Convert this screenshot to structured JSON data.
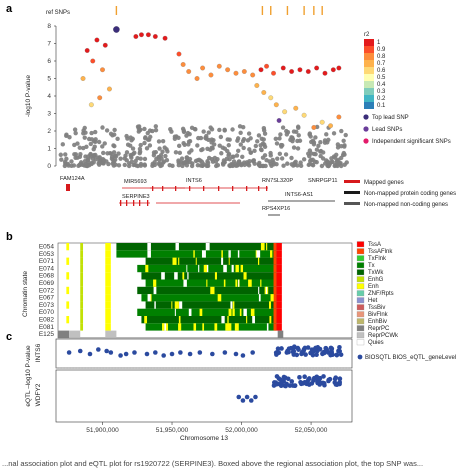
{
  "panel_labels": {
    "a": "a",
    "b": "b",
    "c": "c"
  },
  "caption": "...nal association plot and eQTL plot for rs1920722 (SERPINE3). Boxed above the regional association plot, the top SNP was...",
  "chart_data": [
    {
      "type": "scatter",
      "panel": "a",
      "ylabel": "-log10 P-value",
      "ylim": [
        0,
        8
      ],
      "yticks": [
        "0",
        "1",
        "2",
        "3",
        "4",
        "5",
        "6",
        "7",
        "8"
      ],
      "track_label": "ref SNPs",
      "ref_snps_x": [
        51910000,
        52015000,
        52021000,
        52033000,
        52045000,
        52052000,
        52058000
      ],
      "x_range": [
        51868000,
        52078000
      ],
      "legend_title": "r2",
      "r2_colors": [
        "#e31a1c",
        "#fc4e2a",
        "#fd8d3c",
        "#feb24c",
        "#fed976",
        "#ffffb2",
        "#c7e9b4",
        "#7fcdbb",
        "#41b6c4",
        "#2c7fb8"
      ],
      "r2_ticks": [
        "1",
        "0.9",
        "0.8",
        "0.7",
        "0.6",
        "0.5",
        "0.4",
        "0.3",
        "0.2",
        "0.1"
      ],
      "legend_items": [
        {
          "label": "Top lead SNP",
          "color": "#3b2d7a"
        },
        {
          "label": "Lead SNPs",
          "color": "#6a3d9a"
        },
        {
          "label": "Independent significant SNPs",
          "color": "#e31a6a"
        }
      ],
      "points": [
        {
          "x": 51910000,
          "y": 7.8,
          "c": "#3b2d7a",
          "r": 3.2
        },
        {
          "x": 51896000,
          "y": 7.2,
          "c": "#e31a1c"
        },
        {
          "x": 51902000,
          "y": 6.9,
          "c": "#e31a1c"
        },
        {
          "x": 51889000,
          "y": 6.6,
          "c": "#e31a1c"
        },
        {
          "x": 51893000,
          "y": 6.0,
          "c": "#fc4e2a"
        },
        {
          "x": 51900000,
          "y": 5.5,
          "c": "#fd8d3c"
        },
        {
          "x": 51886000,
          "y": 5.0,
          "c": "#feb24c"
        },
        {
          "x": 51905000,
          "y": 4.4,
          "c": "#feb24c"
        },
        {
          "x": 51898000,
          "y": 3.9,
          "c": "#fd8d3c"
        },
        {
          "x": 51892000,
          "y": 3.5,
          "c": "#fed976"
        },
        {
          "x": 51924000,
          "y": 7.4,
          "c": "#e31a1c"
        },
        {
          "x": 51928000,
          "y": 7.5,
          "c": "#e31a1c"
        },
        {
          "x": 51933000,
          "y": 7.5,
          "c": "#e31a1c"
        },
        {
          "x": 51938000,
          "y": 7.4,
          "c": "#e31a1c"
        },
        {
          "x": 51945000,
          "y": 7.3,
          "c": "#e31a1c"
        },
        {
          "x": 51955000,
          "y": 6.4,
          "c": "#fc4e2a"
        },
        {
          "x": 51958000,
          "y": 5.8,
          "c": "#fd8d3c"
        },
        {
          "x": 51962000,
          "y": 5.4,
          "c": "#fd8d3c"
        },
        {
          "x": 51968000,
          "y": 5.0,
          "c": "#fd8d3c"
        },
        {
          "x": 51972000,
          "y": 5.6,
          "c": "#fd8d3c"
        },
        {
          "x": 51978000,
          "y": 5.2,
          "c": "#fd8d3c"
        },
        {
          "x": 51984000,
          "y": 5.7,
          "c": "#fd8d3c"
        },
        {
          "x": 51990000,
          "y": 5.5,
          "c": "#fd8d3c"
        },
        {
          "x": 51996000,
          "y": 5.3,
          "c": "#fd8d3c"
        },
        {
          "x": 52002000,
          "y": 5.4,
          "c": "#fd8d3c"
        },
        {
          "x": 52008000,
          "y": 5.2,
          "c": "#fd8d3c"
        },
        {
          "x": 52014000,
          "y": 5.5,
          "c": "#e31a1c"
        },
        {
          "x": 52018000,
          "y": 5.7,
          "c": "#fc4e2a"
        },
        {
          "x": 52023000,
          "y": 5.3,
          "c": "#fc4e2a"
        },
        {
          "x": 52030000,
          "y": 5.6,
          "c": "#e31a1c"
        },
        {
          "x": 52036000,
          "y": 5.4,
          "c": "#e31a1c"
        },
        {
          "x": 52042000,
          "y": 5.5,
          "c": "#e31a1c"
        },
        {
          "x": 52048000,
          "y": 5.4,
          "c": "#e31a1c"
        },
        {
          "x": 52054000,
          "y": 5.6,
          "c": "#e31a1c"
        },
        {
          "x": 52060000,
          "y": 5.3,
          "c": "#e31a1c"
        },
        {
          "x": 52066000,
          "y": 5.5,
          "c": "#e31a1c"
        },
        {
          "x": 52070000,
          "y": 5.6,
          "c": "#e31a1c"
        },
        {
          "x": 52011000,
          "y": 4.6,
          "c": "#feb24c"
        },
        {
          "x": 52016000,
          "y": 4.2,
          "c": "#feb24c"
        },
        {
          "x": 52021000,
          "y": 3.9,
          "c": "#fed976"
        },
        {
          "x": 52025000,
          "y": 3.5,
          "c": "#feb24c"
        },
        {
          "x": 52031000,
          "y": 3.1,
          "c": "#fed976"
        },
        {
          "x": 52027000,
          "y": 2.6,
          "c": "#6a3d9a"
        },
        {
          "x": 52039000,
          "y": 3.3,
          "c": "#feb24c"
        },
        {
          "x": 52045000,
          "y": 2.9,
          "c": "#fed976"
        },
        {
          "x": 52052000,
          "y": 2.2,
          "c": "#fd8d3c"
        },
        {
          "x": 52058000,
          "y": 2.5,
          "c": "#fed976"
        },
        {
          "x": 52064000,
          "y": 2.3,
          "c": "#feb24c"
        },
        {
          "x": 52070000,
          "y": 2.8,
          "c": "#fd8d3c"
        }
      ],
      "background_points": {
        "count": 520,
        "color": "#7f7f7f",
        "ymax": 2.3
      },
      "genes": [
        {
          "label": "FAM124A",
          "mapped": true
        },
        {
          "label": "MIR5693",
          "mapped": true
        },
        {
          "label": "SERPINE3",
          "mapped": true
        },
        {
          "label": "INTS6",
          "mapped": true
        },
        {
          "label": "RN7SL320P",
          "mapped": false
        },
        {
          "label": "INTS6-AS1",
          "mapped": false
        },
        {
          "label": "SNRPGP11",
          "mapped": false
        },
        {
          "label": "RPS4XP16",
          "mapped": false
        }
      ],
      "gene_legend": [
        {
          "label": "Mapped genes",
          "color": "#d7191c"
        },
        {
          "label": "Non-mapped protein coding genes",
          "color": "#1a1a1a"
        },
        {
          "label": "Non-mapped non-coding genes",
          "color": "#555555"
        }
      ]
    },
    {
      "type": "heatmap",
      "panel": "b",
      "ylabel": "Chromatin state",
      "rows": [
        "E054",
        "E053",
        "E071",
        "E074",
        "E068",
        "E069",
        "E072",
        "E067",
        "E073",
        "E070",
        "E082",
        "E081",
        "E125"
      ],
      "states": [
        {
          "label": "TssA",
          "color": "#ff0000"
        },
        {
          "label": "TssAFlnk",
          "color": "#ff4500"
        },
        {
          "label": "TxFlnk",
          "color": "#32cd32"
        },
        {
          "label": "Tx",
          "color": "#008000"
        },
        {
          "label": "TxWk",
          "color": "#006400"
        },
        {
          "label": "EnhG",
          "color": "#c2e105"
        },
        {
          "label": "Enh",
          "color": "#ffff00"
        },
        {
          "label": "ZNF/Rpts",
          "color": "#66cdaa"
        },
        {
          "label": "Het",
          "color": "#8a91d0"
        },
        {
          "label": "TssBiv",
          "color": "#cd5c5c"
        },
        {
          "label": "BivFlnk",
          "color": "#e9967a"
        },
        {
          "label": "EnhBiv",
          "color": "#bdb76b"
        },
        {
          "label": "ReprPC",
          "color": "#808080"
        },
        {
          "label": "ReprPCWk",
          "color": "#c0c0c0"
        },
        {
          "label": "Quies",
          "color": "#ffffff"
        }
      ]
    },
    {
      "type": "scatter",
      "panel": "c",
      "ylabel": "eQTL –log10 P-value",
      "genes": [
        "INTS6",
        "WDFY2"
      ],
      "legend": "BIOSQTL BIOS_eQTL_geneLevel",
      "point_color": "#2b4a9f",
      "xlabel": "Chromosome 13",
      "xticks": [
        "51,900,000",
        "51,950,000",
        "52,000,000",
        "52,050,000"
      ],
      "xtick_values": [
        51900000,
        51950000,
        52000000,
        52050000
      ],
      "ints6_points": [
        [
          51876000,
          0.9
        ],
        [
          51884000,
          1.0
        ],
        [
          51891000,
          0.8
        ],
        [
          51897000,
          1.1
        ],
        [
          51903000,
          1.0
        ],
        [
          51906000,
          0.9
        ],
        [
          51913000,
          0.7
        ],
        [
          51917000,
          0.8
        ],
        [
          51923000,
          0.9
        ],
        [
          51932000,
          0.8
        ],
        [
          51938000,
          0.9
        ],
        [
          51944000,
          0.7
        ],
        [
          51950000,
          0.8
        ],
        [
          51956000,
          0.9
        ],
        [
          51963000,
          0.8
        ],
        [
          51970000,
          0.9
        ],
        [
          51979000,
          0.8
        ],
        [
          51988000,
          0.9
        ],
        [
          51996000,
          0.8
        ],
        [
          52001000,
          0.7
        ],
        [
          52008000,
          0.9
        ]
      ],
      "ints6_cluster": {
        "x_start": 52023000,
        "x_end": 52072000,
        "count": 60,
        "ymin": 0.7,
        "ymax": 1.3
      },
      "wdfy2_points": [
        [
          51998000,
          0.6
        ],
        [
          52001000,
          0.5
        ],
        [
          52004000,
          0.6
        ],
        [
          52007000,
          0.5
        ],
        [
          52010000,
          0.6
        ]
      ],
      "wdfy2_cluster": {
        "x_start": 52023000,
        "x_end": 52072000,
        "count": 60,
        "ymin": 0.9,
        "ymax": 1.2
      }
    }
  ]
}
